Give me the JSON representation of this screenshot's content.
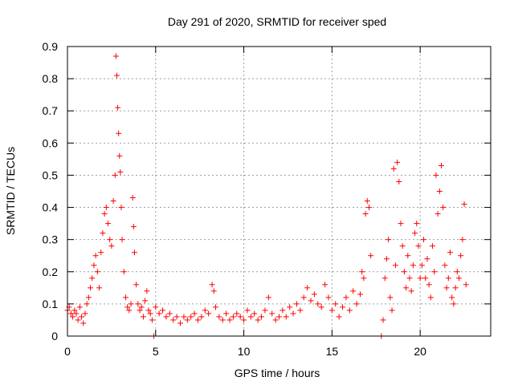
{
  "chart_data": {
    "type": "scatter",
    "title": "Day 291 of 2020, SRMTID for receiver sped",
    "xlabel": "GPS time / hours",
    "ylabel": "SRMTID / TECUs",
    "xlim": [
      0,
      24
    ],
    "ylim": [
      0,
      0.9
    ],
    "x_ticks": [
      0,
      5,
      10,
      15,
      20
    ],
    "y_ticks": [
      0,
      0.1,
      0.2,
      0.3,
      0.4,
      0.5,
      0.6,
      0.7,
      0.8,
      0.9
    ],
    "x_tick_labels": [
      "0",
      "5",
      "10",
      "15",
      "20"
    ],
    "y_tick_labels": [
      "0",
      "0.1",
      "0.2",
      "0.3",
      "0.4",
      "0.5",
      "0.6",
      "0.7",
      "0.8",
      "0.9"
    ],
    "grid": true,
    "marker": "plus",
    "color": "#ff0000",
    "points": [
      [
        0.0,
        0.08
      ],
      [
        0.1,
        0.09
      ],
      [
        0.2,
        0.07
      ],
      [
        0.3,
        0.06
      ],
      [
        0.4,
        0.08
      ],
      [
        0.5,
        0.07
      ],
      [
        0.6,
        0.05
      ],
      [
        0.7,
        0.09
      ],
      [
        0.8,
        0.06
      ],
      [
        0.9,
        0.04
      ],
      [
        1.0,
        0.07
      ],
      [
        1.1,
        0.1
      ],
      [
        1.2,
        0.12
      ],
      [
        1.3,
        0.15
      ],
      [
        1.4,
        0.18
      ],
      [
        1.5,
        0.22
      ],
      [
        1.6,
        0.25
      ],
      [
        1.7,
        0.2
      ],
      [
        1.8,
        0.15
      ],
      [
        1.9,
        0.26
      ],
      [
        2.0,
        0.32
      ],
      [
        2.1,
        0.38
      ],
      [
        2.2,
        0.4
      ],
      [
        2.3,
        0.35
      ],
      [
        2.4,
        0.3
      ],
      [
        2.5,
        0.28
      ],
      [
        2.6,
        0.42
      ],
      [
        2.7,
        0.5
      ],
      [
        2.75,
        0.87
      ],
      [
        2.8,
        0.81
      ],
      [
        2.85,
        0.71
      ],
      [
        2.9,
        0.63
      ],
      [
        2.95,
        0.56
      ],
      [
        3.0,
        0.51
      ],
      [
        3.05,
        0.4
      ],
      [
        3.1,
        0.3
      ],
      [
        3.2,
        0.2
      ],
      [
        3.3,
        0.12
      ],
      [
        3.4,
        0.09
      ],
      [
        3.5,
        0.08
      ],
      [
        3.6,
        0.1
      ],
      [
        3.7,
        0.43
      ],
      [
        3.75,
        0.34
      ],
      [
        3.8,
        0.26
      ],
      [
        3.9,
        0.16
      ],
      [
        4.0,
        0.1
      ],
      [
        4.1,
        0.08
      ],
      [
        4.2,
        0.09
      ],
      [
        4.3,
        0.06
      ],
      [
        4.4,
        0.11
      ],
      [
        4.5,
        0.14
      ],
      [
        4.6,
        0.08
      ],
      [
        4.7,
        0.07
      ],
      [
        4.8,
        0.05
      ],
      [
        4.9,
        0.0
      ],
      [
        5.0,
        0.09
      ],
      [
        5.2,
        0.07
      ],
      [
        5.4,
        0.08
      ],
      [
        5.6,
        0.06
      ],
      [
        5.8,
        0.07
      ],
      [
        6.0,
        0.05
      ],
      [
        6.2,
        0.06
      ],
      [
        6.4,
        0.04
      ],
      [
        6.6,
        0.06
      ],
      [
        6.8,
        0.05
      ],
      [
        7.0,
        0.06
      ],
      [
        7.2,
        0.07
      ],
      [
        7.4,
        0.05
      ],
      [
        7.6,
        0.06
      ],
      [
        7.8,
        0.08
      ],
      [
        8.0,
        0.07
      ],
      [
        8.2,
        0.16
      ],
      [
        8.3,
        0.14
      ],
      [
        8.4,
        0.09
      ],
      [
        8.6,
        0.06
      ],
      [
        8.8,
        0.05
      ],
      [
        9.0,
        0.07
      ],
      [
        9.2,
        0.05
      ],
      [
        9.4,
        0.06
      ],
      [
        9.6,
        0.07
      ],
      [
        9.8,
        0.06
      ],
      [
        10.0,
        0.05
      ],
      [
        10.2,
        0.08
      ],
      [
        10.4,
        0.06
      ],
      [
        10.6,
        0.07
      ],
      [
        10.8,
        0.05
      ],
      [
        11.0,
        0.06
      ],
      [
        11.2,
        0.08
      ],
      [
        11.4,
        0.12
      ],
      [
        11.6,
        0.07
      ],
      [
        11.8,
        0.05
      ],
      [
        12.0,
        0.06
      ],
      [
        12.2,
        0.08
      ],
      [
        12.4,
        0.06
      ],
      [
        12.6,
        0.09
      ],
      [
        12.8,
        0.07
      ],
      [
        13.0,
        0.1
      ],
      [
        13.2,
        0.08
      ],
      [
        13.4,
        0.12
      ],
      [
        13.6,
        0.15
      ],
      [
        13.8,
        0.11
      ],
      [
        14.0,
        0.13
      ],
      [
        14.2,
        0.1
      ],
      [
        14.4,
        0.09
      ],
      [
        14.6,
        0.16
      ],
      [
        14.8,
        0.12
      ],
      [
        15.0,
        0.08
      ],
      [
        15.2,
        0.1
      ],
      [
        15.4,
        0.06
      ],
      [
        15.6,
        0.09
      ],
      [
        15.8,
        0.12
      ],
      [
        16.0,
        0.08
      ],
      [
        16.2,
        0.14
      ],
      [
        16.4,
        0.1
      ],
      [
        16.6,
        0.13
      ],
      [
        16.7,
        0.2
      ],
      [
        16.8,
        0.18
      ],
      [
        16.9,
        0.38
      ],
      [
        17.0,
        0.42
      ],
      [
        17.1,
        0.4
      ],
      [
        17.2,
        0.25
      ],
      [
        17.8,
        0.0
      ],
      [
        17.9,
        0.05
      ],
      [
        18.0,
        0.18
      ],
      [
        18.1,
        0.24
      ],
      [
        18.2,
        0.3
      ],
      [
        18.3,
        0.12
      ],
      [
        18.4,
        0.08
      ],
      [
        18.5,
        0.52
      ],
      [
        18.6,
        0.22
      ],
      [
        18.7,
        0.54
      ],
      [
        18.8,
        0.48
      ],
      [
        18.9,
        0.35
      ],
      [
        19.0,
        0.28
      ],
      [
        19.1,
        0.2
      ],
      [
        19.2,
        0.15
      ],
      [
        19.3,
        0.25
      ],
      [
        19.4,
        0.18
      ],
      [
        19.5,
        0.14
      ],
      [
        19.6,
        0.22
      ],
      [
        19.7,
        0.32
      ],
      [
        19.8,
        0.35
      ],
      [
        19.9,
        0.28
      ],
      [
        20.0,
        0.18
      ],
      [
        20.1,
        0.22
      ],
      [
        20.2,
        0.3
      ],
      [
        20.3,
        0.18
      ],
      [
        20.4,
        0.24
      ],
      [
        20.5,
        0.16
      ],
      [
        20.6,
        0.12
      ],
      [
        20.7,
        0.28
      ],
      [
        20.8,
        0.2
      ],
      [
        20.9,
        0.5
      ],
      [
        21.0,
        0.38
      ],
      [
        21.1,
        0.45
      ],
      [
        21.2,
        0.53
      ],
      [
        21.3,
        0.4
      ],
      [
        21.4,
        0.22
      ],
      [
        21.5,
        0.15
      ],
      [
        21.6,
        0.18
      ],
      [
        21.7,
        0.26
      ],
      [
        21.8,
        0.12
      ],
      [
        21.9,
        0.1
      ],
      [
        22.0,
        0.15
      ],
      [
        22.1,
        0.2
      ],
      [
        22.2,
        0.18
      ],
      [
        22.3,
        0.25
      ],
      [
        22.4,
        0.3
      ],
      [
        22.5,
        0.41
      ],
      [
        22.6,
        0.16
      ]
    ]
  }
}
